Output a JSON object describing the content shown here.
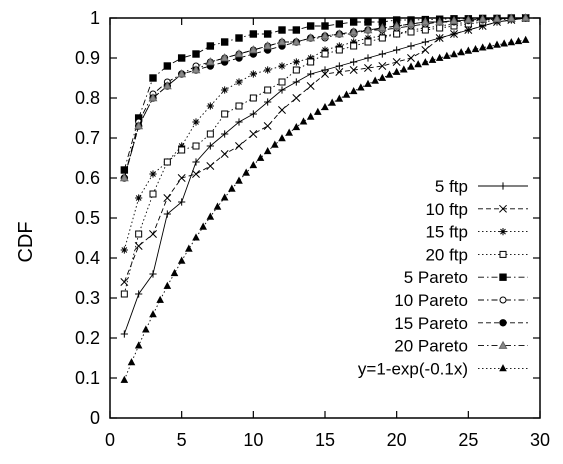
{
  "chart_data": {
    "type": "line",
    "title": "",
    "xlabel": "",
    "ylabel": "CDF",
    "xlim": [
      0,
      30
    ],
    "ylim": [
      0,
      1
    ],
    "xticks": [
      0,
      5,
      10,
      15,
      20,
      25,
      30
    ],
    "yticks": [
      0,
      0.1,
      0.2,
      0.3,
      0.4,
      0.5,
      0.6,
      0.7,
      0.8,
      0.9,
      1
    ],
    "grid": false,
    "legend_position": "bottom-right",
    "series": [
      {
        "name": "5 ftp",
        "marker": "plus",
        "dash": "solid",
        "color": "#000000",
        "x": [
          1,
          2,
          3,
          4,
          5,
          6,
          7,
          8,
          9,
          10,
          11,
          12,
          13,
          14,
          15,
          16,
          17,
          18,
          19,
          20,
          21,
          22,
          23,
          24,
          25,
          26,
          27,
          28,
          29
        ],
        "y": [
          0.21,
          0.31,
          0.36,
          0.51,
          0.54,
          0.64,
          0.68,
          0.71,
          0.74,
          0.76,
          0.79,
          0.82,
          0.84,
          0.86,
          0.87,
          0.88,
          0.89,
          0.9,
          0.91,
          0.92,
          0.93,
          0.94,
          0.95,
          0.96,
          0.97,
          0.98,
          0.99,
          0.995,
          1.0
        ]
      },
      {
        "name": "10 ftp",
        "marker": "x",
        "dash": "dash",
        "color": "#000000",
        "x": [
          1,
          2,
          3,
          4,
          5,
          6,
          7,
          8,
          9,
          10,
          11,
          12,
          13,
          14,
          15,
          16,
          17,
          18,
          19,
          20,
          21,
          22,
          23,
          24,
          25,
          26,
          27,
          28,
          29
        ],
        "y": [
          0.34,
          0.43,
          0.46,
          0.55,
          0.6,
          0.61,
          0.63,
          0.66,
          0.68,
          0.71,
          0.73,
          0.77,
          0.8,
          0.83,
          0.86,
          0.865,
          0.87,
          0.875,
          0.88,
          0.89,
          0.9,
          0.92,
          0.95,
          0.96,
          0.97,
          0.98,
          0.99,
          0.995,
          1.0
        ]
      },
      {
        "name": "15 ftp",
        "marker": "asterisk",
        "dash": "dot",
        "color": "#000000",
        "x": [
          1,
          2,
          3,
          4,
          5,
          6,
          7,
          8,
          9,
          10,
          11,
          12,
          13,
          14,
          15,
          16,
          17,
          18,
          19,
          20,
          21,
          22,
          23,
          24,
          25,
          26,
          27,
          28,
          29
        ],
        "y": [
          0.42,
          0.55,
          0.61,
          0.64,
          0.68,
          0.74,
          0.78,
          0.82,
          0.84,
          0.86,
          0.87,
          0.88,
          0.89,
          0.9,
          0.92,
          0.93,
          0.94,
          0.95,
          0.955,
          0.96,
          0.97,
          0.975,
          0.98,
          0.985,
          0.99,
          0.995,
          0.997,
          0.999,
          1.0
        ]
      },
      {
        "name": "20 ftp",
        "marker": "square-open",
        "dash": "dot",
        "color": "#000000",
        "x": [
          1,
          2,
          3,
          4,
          5,
          6,
          7,
          8,
          9,
          10,
          11,
          12,
          13,
          14,
          15,
          16,
          17,
          18,
          19,
          20,
          21,
          22,
          23,
          24,
          25,
          26,
          27,
          28,
          29
        ],
        "y": [
          0.31,
          0.46,
          0.56,
          0.64,
          0.67,
          0.68,
          0.71,
          0.76,
          0.78,
          0.8,
          0.82,
          0.84,
          0.87,
          0.89,
          0.91,
          0.92,
          0.93,
          0.94,
          0.95,
          0.96,
          0.965,
          0.97,
          0.975,
          0.98,
          0.985,
          0.99,
          0.995,
          0.998,
          1.0
        ]
      },
      {
        "name": "5 Pareto",
        "marker": "square-filled",
        "dash": "dashdot",
        "color": "#000000",
        "x": [
          1,
          2,
          3,
          4,
          5,
          6,
          7,
          8,
          9,
          10,
          11,
          12,
          13,
          14,
          15,
          16,
          17,
          18,
          19,
          20,
          21,
          22,
          23,
          24,
          25,
          26,
          27,
          28,
          29
        ],
        "y": [
          0.62,
          0.75,
          0.85,
          0.88,
          0.9,
          0.91,
          0.93,
          0.94,
          0.95,
          0.96,
          0.96,
          0.97,
          0.97,
          0.98,
          0.98,
          0.985,
          0.99,
          0.99,
          0.99,
          0.995,
          0.995,
          0.996,
          0.997,
          0.998,
          0.998,
          0.999,
          0.999,
          1.0,
          1.0
        ]
      },
      {
        "name": "10 Pareto",
        "marker": "circle-open",
        "dash": "dashdot",
        "color": "#000000",
        "x": [
          1,
          2,
          3,
          4,
          5,
          6,
          7,
          8,
          9,
          10,
          11,
          12,
          13,
          14,
          15,
          16,
          17,
          18,
          19,
          20,
          21,
          22,
          23,
          24,
          25,
          26,
          27,
          28,
          29
        ],
        "y": [
          0.6,
          0.74,
          0.81,
          0.84,
          0.86,
          0.88,
          0.89,
          0.9,
          0.91,
          0.92,
          0.93,
          0.94,
          0.94,
          0.95,
          0.95,
          0.96,
          0.96,
          0.97,
          0.97,
          0.975,
          0.98,
          0.985,
          0.99,
          0.99,
          0.993,
          0.995,
          0.997,
          0.999,
          1.0
        ]
      },
      {
        "name": "15 Pareto",
        "marker": "circle-filled",
        "dash": "dash",
        "color": "#000000",
        "x": [
          1,
          2,
          3,
          4,
          5,
          6,
          7,
          8,
          9,
          10,
          11,
          12,
          13,
          14,
          15,
          16,
          17,
          18,
          19,
          20,
          21,
          22,
          23,
          24,
          25,
          26,
          27,
          28,
          29
        ],
        "y": [
          0.6,
          0.73,
          0.8,
          0.83,
          0.86,
          0.87,
          0.88,
          0.89,
          0.9,
          0.91,
          0.92,
          0.93,
          0.94,
          0.95,
          0.955,
          0.96,
          0.965,
          0.97,
          0.975,
          0.98,
          0.985,
          0.99,
          0.99,
          0.993,
          0.995,
          0.997,
          0.998,
          0.999,
          1.0
        ]
      },
      {
        "name": "20 Pareto",
        "marker": "triangle-open",
        "dash": "dashdot",
        "color": "#000000",
        "x": [
          1,
          2,
          3,
          4,
          5,
          6,
          7,
          8,
          9,
          10,
          11,
          12,
          13,
          14,
          15,
          16,
          17,
          18,
          19,
          20,
          21,
          22,
          23,
          24,
          25,
          26,
          27,
          28,
          29
        ],
        "y": [
          0.6,
          0.73,
          0.8,
          0.83,
          0.86,
          0.87,
          0.89,
          0.9,
          0.91,
          0.92,
          0.93,
          0.94,
          0.94,
          0.95,
          0.955,
          0.96,
          0.965,
          0.97,
          0.975,
          0.98,
          0.985,
          0.99,
          0.99,
          0.993,
          0.995,
          0.997,
          0.998,
          0.999,
          1.0
        ]
      },
      {
        "name": "y=1-exp(-0.1x)",
        "marker": "triangle-filled",
        "dash": "dot",
        "color": "#000000",
        "x": [
          1,
          1.5,
          2,
          2.5,
          3,
          3.5,
          4,
          4.5,
          5,
          5.5,
          6,
          6.5,
          7,
          7.5,
          8,
          8.5,
          9,
          9.5,
          10,
          10.5,
          11,
          11.5,
          12,
          12.5,
          13,
          13.5,
          14,
          14.5,
          15,
          15.5,
          16,
          16.5,
          17,
          17.5,
          18,
          18.5,
          19,
          19.5,
          20,
          20.5,
          21,
          21.5,
          22,
          22.5,
          23,
          23.5,
          24,
          24.5,
          25,
          25.5,
          26,
          26.5,
          27,
          27.5,
          28,
          28.5,
          29
        ],
        "y": [
          0.095,
          0.139,
          0.181,
          0.221,
          0.259,
          0.295,
          0.33,
          0.362,
          0.393,
          0.423,
          0.451,
          0.478,
          0.503,
          0.528,
          0.551,
          0.573,
          0.593,
          0.613,
          0.632,
          0.65,
          0.667,
          0.683,
          0.699,
          0.713,
          0.727,
          0.741,
          0.753,
          0.765,
          0.777,
          0.788,
          0.798,
          0.808,
          0.817,
          0.826,
          0.835,
          0.843,
          0.85,
          0.858,
          0.865,
          0.871,
          0.878,
          0.884,
          0.889,
          0.895,
          0.9,
          0.905,
          0.909,
          0.914,
          0.918,
          0.922,
          0.926,
          0.929,
          0.933,
          0.936,
          0.939,
          0.942,
          0.945
        ]
      }
    ]
  }
}
